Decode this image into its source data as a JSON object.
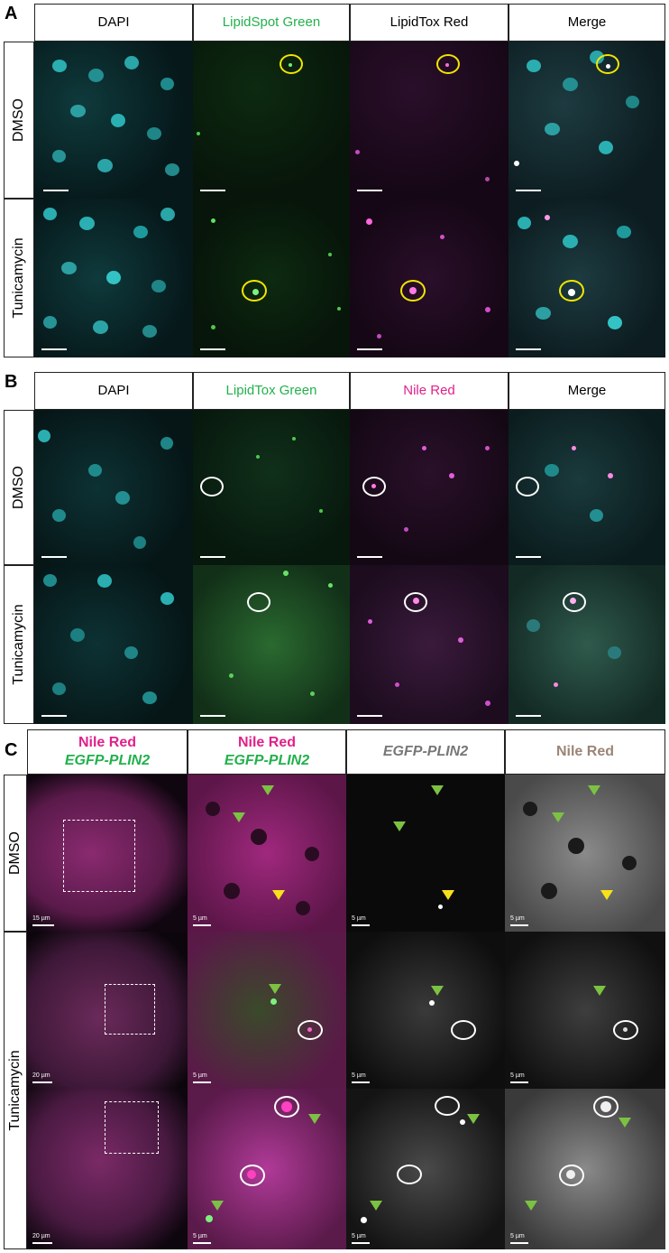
{
  "panels": {
    "a": {
      "letter": "A",
      "columns": [
        "DAPI",
        "LipidSpot Green",
        "LipidTox Red",
        "Merge"
      ],
      "rows": [
        "DMSO",
        "Tunicamycin"
      ]
    },
    "b": {
      "letter": "B",
      "columns": [
        "DAPI",
        "LipidTox Green",
        "Nile Red",
        "Merge"
      ],
      "rows": [
        "DMSO",
        "Tunicamycin"
      ]
    },
    "c": {
      "letter": "C",
      "col1_line1": "Nile Red",
      "col1_line2": "EGFP-PLIN2",
      "col2_line1": "Nile Red",
      "col2_line2": "EGFP-PLIN2",
      "col3": "EGFP-PLIN2",
      "col4": "Nile Red",
      "rows": [
        "DMSO",
        "Tunicamycin"
      ],
      "scale_15": "15 µm",
      "scale_20": "20 µm",
      "scale_5": "5 µm"
    }
  },
  "colors": {
    "header_green": "#22b14c",
    "header_magenta": "#e0218a",
    "c_gray": "#777777",
    "c_tan": "#9b8576",
    "circle_yellow": "#f2e600",
    "circle_white": "#ffffff",
    "arrow_green": "#7cc242",
    "arrow_yellow": "#f7e11a"
  }
}
